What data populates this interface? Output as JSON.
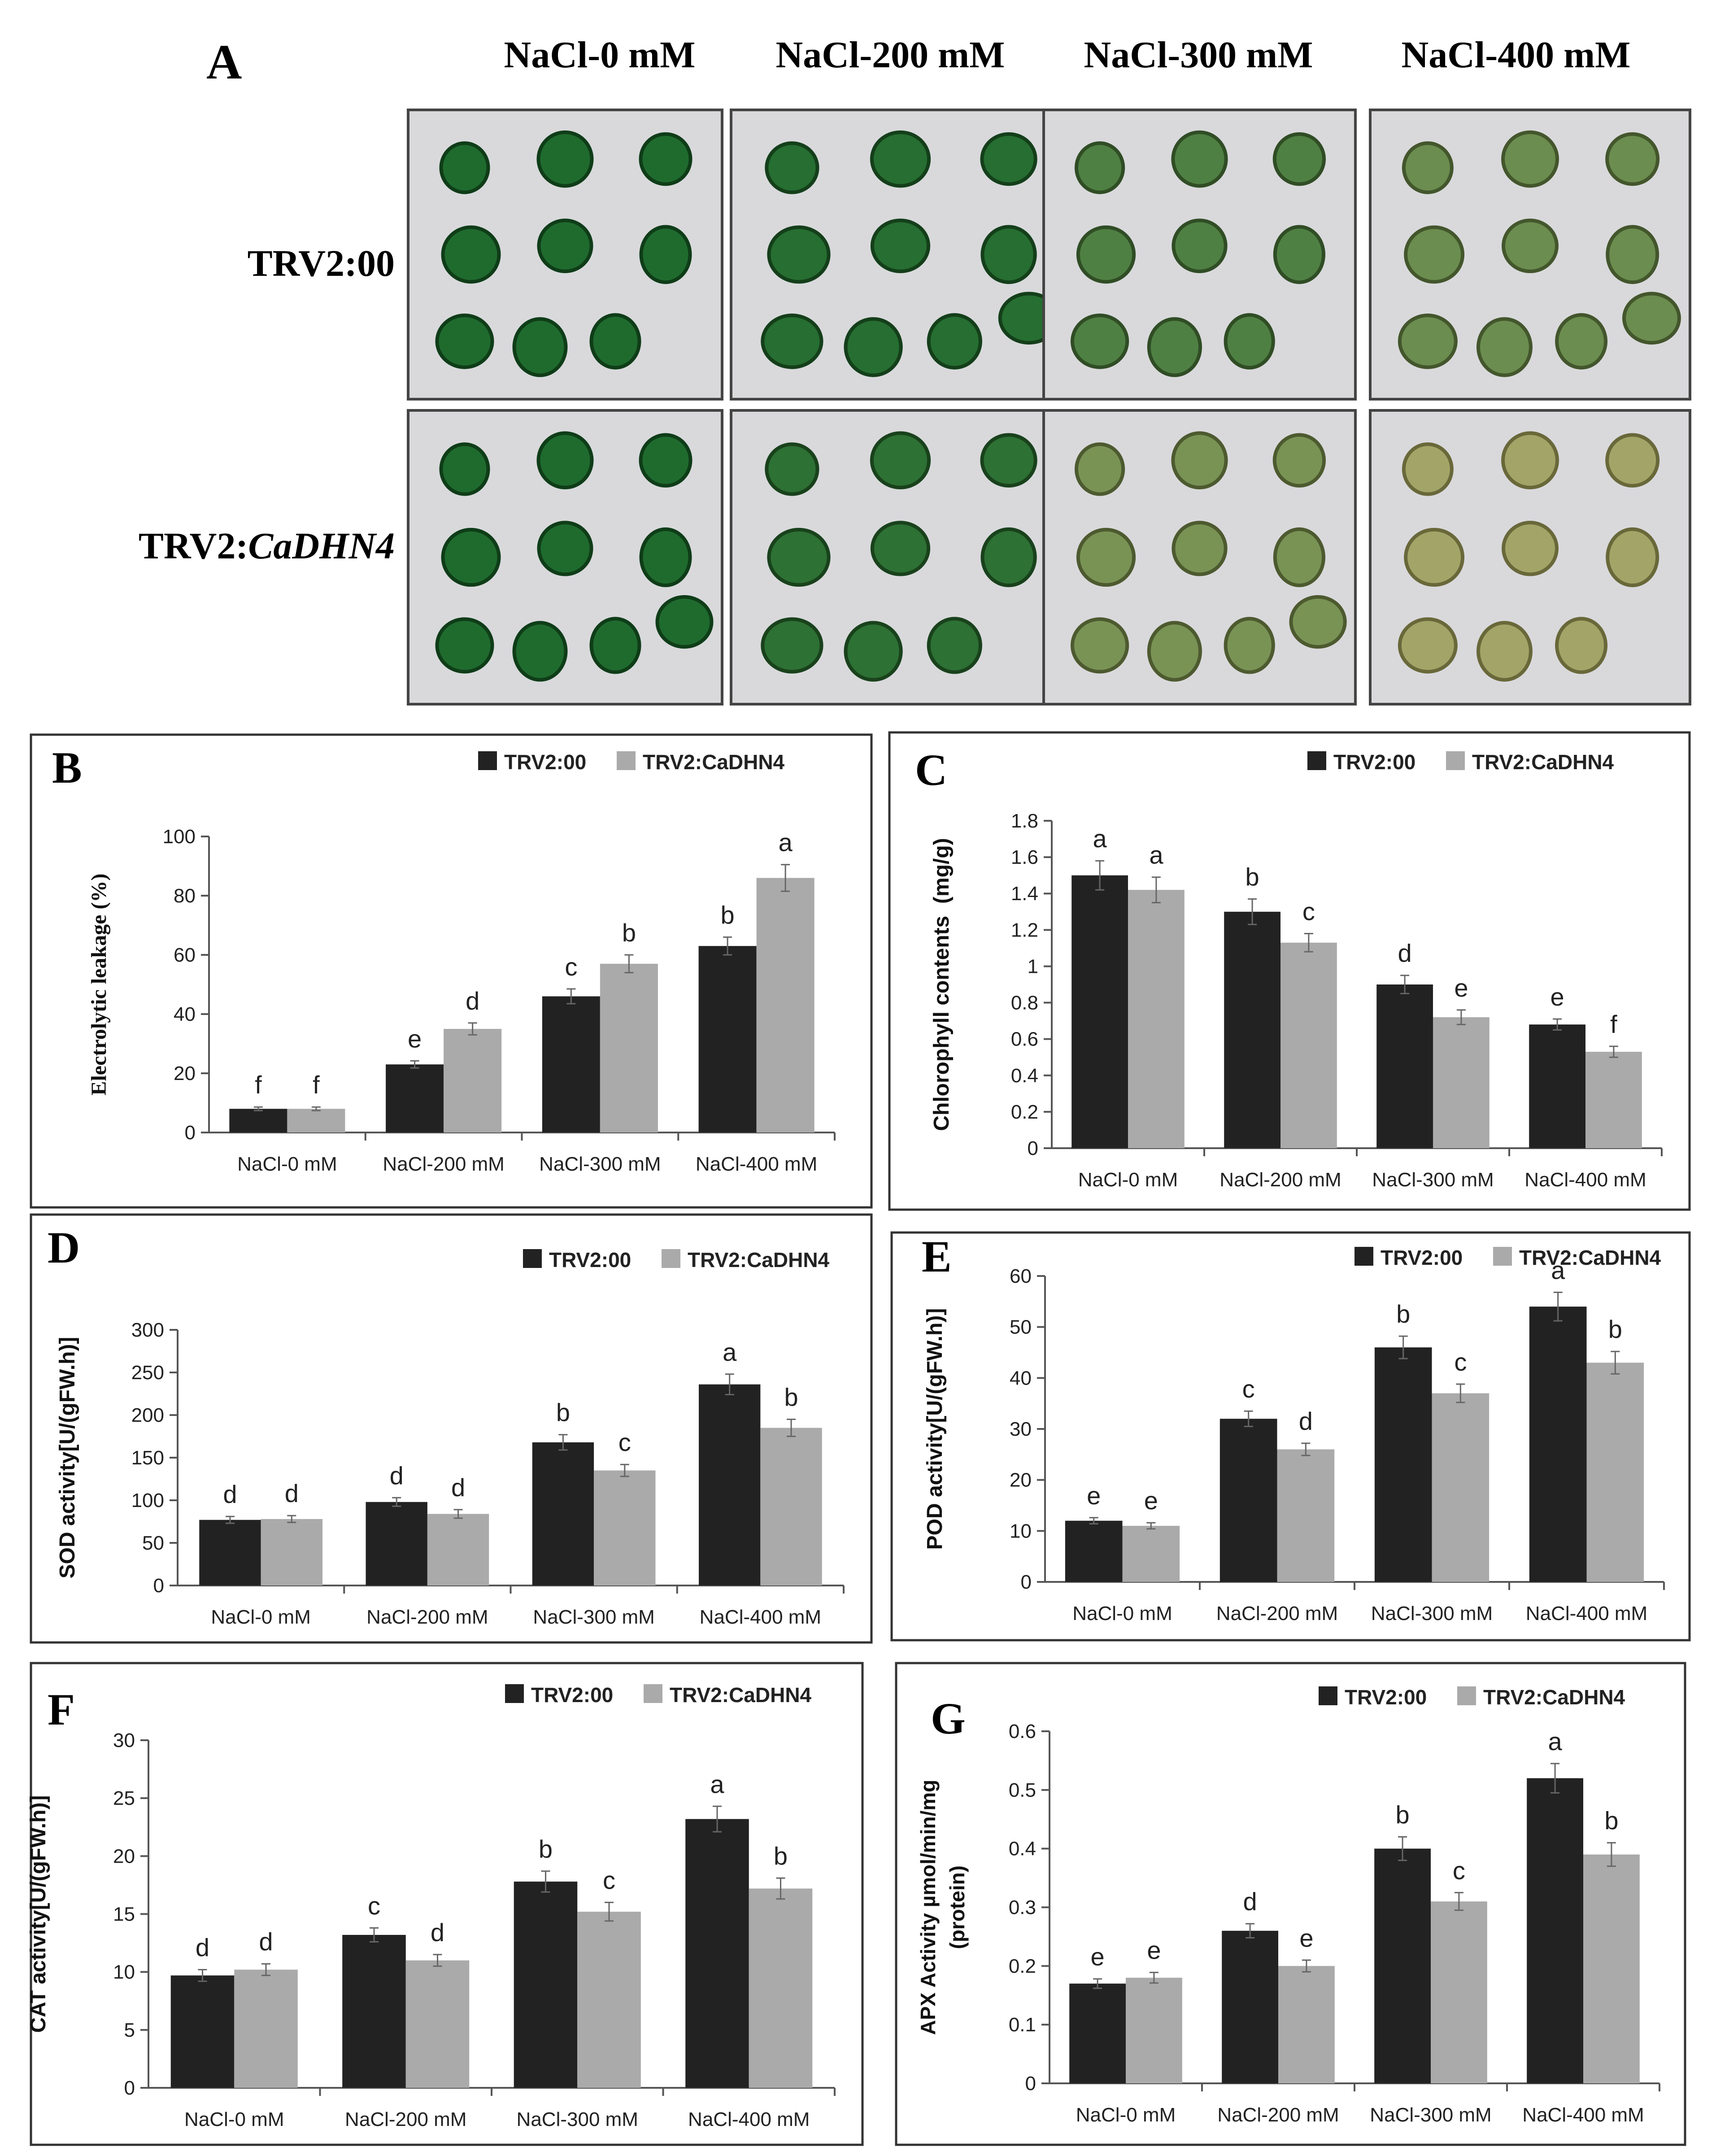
{
  "figure": {
    "panel_a": {
      "label": "A",
      "column_headers": [
        "NaCl-0 mM",
        "NaCl-200 mM",
        "NaCl-300 mM",
        "NaCl-400 mM"
      ],
      "row_labels": [
        {
          "prefix": "TRV2:00",
          "italic": ""
        },
        {
          "prefix": "TRV2:",
          "italic": "CaDHN4"
        }
      ],
      "healthy_color": "#1f6b2e",
      "stressed_color": "#a9a86a",
      "background_color": "#d9d9dc"
    }
  },
  "colors": {
    "trv2_00": "#222222",
    "trv2_cadhn4": "#aaaaaa"
  },
  "chart_data": [
    {
      "id": "B",
      "type": "bar",
      "label": "B",
      "ylabel": "Electrolytic leakage (%)",
      "categories": [
        "NaCl-0 mM",
        "NaCl-200 mM",
        "NaCl-300 mM",
        "NaCl-400 mM"
      ],
      "ylim": [
        0,
        100
      ],
      "yticks": [
        "0",
        "20",
        "40",
        "60",
        "80",
        "100"
      ],
      "series": [
        {
          "name": "TRV2:00",
          "values": [
            8,
            23,
            46,
            63
          ],
          "errors": [
            0.6,
            1.2,
            2.5,
            3
          ],
          "letters": [
            "f",
            "e",
            "c",
            "b"
          ]
        },
        {
          "name": "TRV2:CaDHN4",
          "values": [
            8,
            35,
            57,
            86
          ],
          "errors": [
            0.6,
            2,
            3,
            4.5
          ],
          "letters": [
            "f",
            "d",
            "b",
            "a"
          ]
        }
      ]
    },
    {
      "id": "C",
      "type": "bar",
      "label": "C",
      "ylabel": "Chlorophyll contents  (mg/g)",
      "categories": [
        "NaCl-0 mM",
        "NaCl-200 mM",
        "NaCl-300 mM",
        "NaCl-400 mM"
      ],
      "ylim": [
        0,
        1.8
      ],
      "yticks": [
        "0",
        "0.2",
        "0.4",
        "0.6",
        "0.8",
        "1",
        "1.2",
        "1.4",
        "1.6",
        "1.8"
      ],
      "series": [
        {
          "name": "TRV2:00",
          "values": [
            1.5,
            1.3,
            0.9,
            0.68
          ],
          "errors": [
            0.08,
            0.07,
            0.05,
            0.03
          ],
          "letters": [
            "a",
            "b",
            "d",
            "e"
          ]
        },
        {
          "name": "TRV2:CaDHN4",
          "values": [
            1.42,
            1.13,
            0.72,
            0.53
          ],
          "errors": [
            0.07,
            0.05,
            0.04,
            0.03
          ],
          "letters": [
            "a",
            "c",
            "e",
            "f"
          ]
        }
      ]
    },
    {
      "id": "D",
      "type": "bar",
      "label": "D",
      "ylabel": "SOD activity[U/(gFW.h)]",
      "categories": [
        "NaCl-0 mM",
        "NaCl-200 mM",
        "NaCl-300 mM",
        "NaCl-400 mM"
      ],
      "ylim": [
        0,
        300
      ],
      "yticks": [
        "0",
        "50",
        "100",
        "150",
        "200",
        "250",
        "300"
      ],
      "series": [
        {
          "name": "TRV2:00",
          "values": [
            77,
            98,
            168,
            236
          ],
          "errors": [
            4,
            5,
            9,
            12
          ],
          "letters": [
            "d",
            "d",
            "b",
            "a"
          ]
        },
        {
          "name": "TRV2:CaDHN4",
          "values": [
            78,
            84,
            135,
            185
          ],
          "errors": [
            4,
            5,
            7,
            10
          ],
          "letters": [
            "d",
            "d",
            "c",
            "b"
          ]
        }
      ]
    },
    {
      "id": "E",
      "type": "bar",
      "label": "E",
      "ylabel": "POD activity[U/(gFW.h)]",
      "categories": [
        "NaCl-0 mM",
        "NaCl-200 mM",
        "NaCl-300 mM",
        "NaCl-400 mM"
      ],
      "ylim": [
        0,
        60
      ],
      "yticks": [
        "0",
        "10",
        "20",
        "30",
        "40",
        "50",
        "60"
      ],
      "series": [
        {
          "name": "TRV2:00",
          "values": [
            12,
            32,
            46,
            54
          ],
          "errors": [
            0.6,
            1.5,
            2.2,
            2.8
          ],
          "letters": [
            "e",
            "c",
            "b",
            "a"
          ]
        },
        {
          "name": "TRV2:CaDHN4",
          "values": [
            11,
            26,
            37,
            43
          ],
          "errors": [
            0.6,
            1.2,
            1.8,
            2.2
          ],
          "letters": [
            "e",
            "d",
            "c",
            "b"
          ]
        }
      ]
    },
    {
      "id": "F",
      "type": "bar",
      "label": "F",
      "ylabel": "CAT activity[U/(gFW.h)]",
      "categories": [
        "NaCl-0 mM",
        "NaCl-200 mM",
        "NaCl-300 mM",
        "NaCl-400 mM"
      ],
      "ylim": [
        0,
        30
      ],
      "yticks": [
        "0",
        "5",
        "10",
        "15",
        "20",
        "25",
        "30"
      ],
      "series": [
        {
          "name": "TRV2:00",
          "values": [
            9.7,
            13.2,
            17.8,
            23.2
          ],
          "errors": [
            0.5,
            0.6,
            0.9,
            1.1
          ],
          "letters": [
            "d",
            "c",
            "b",
            "a"
          ]
        },
        {
          "name": "TRV2:CaDHN4",
          "values": [
            10.2,
            11,
            15.2,
            17.2
          ],
          "errors": [
            0.5,
            0.5,
            0.8,
            0.9
          ],
          "letters": [
            "d",
            "d",
            "c",
            "b"
          ]
        }
      ]
    },
    {
      "id": "G",
      "type": "bar",
      "label": "G",
      "ylabel": "APX Activity µmol/min/mg",
      "ylabel2": "(protein)",
      "categories": [
        "NaCl-0 mM",
        "NaCl-200 mM",
        "NaCl-300 mM",
        "NaCl-400 mM"
      ],
      "ylim": [
        0,
        0.6
      ],
      "yticks": [
        "0",
        "0.1",
        "0.2",
        "0.3",
        "0.4",
        "0.5",
        "0.6"
      ],
      "series": [
        {
          "name": "TRV2:00",
          "values": [
            0.17,
            0.26,
            0.4,
            0.52
          ],
          "errors": [
            0.008,
            0.012,
            0.02,
            0.025
          ],
          "letters": [
            "e",
            "d",
            "b",
            "a"
          ]
        },
        {
          "name": "TRV2:CaDHN4",
          "values": [
            0.18,
            0.2,
            0.31,
            0.39
          ],
          "errors": [
            0.009,
            0.01,
            0.015,
            0.02
          ],
          "letters": [
            "e",
            "e",
            "c",
            "b"
          ]
        }
      ]
    }
  ]
}
